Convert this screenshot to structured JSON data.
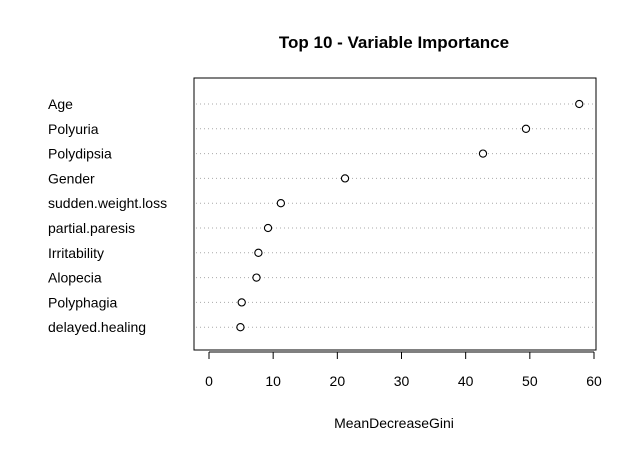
{
  "chart_data": {
    "type": "scatter",
    "title": "Top 10 - Variable Importance",
    "xlabel": "MeanDecreaseGini",
    "ylabel": "",
    "xlim": [
      0,
      60
    ],
    "xticks": [
      "0",
      "10",
      "20",
      "30",
      "40",
      "50",
      "60"
    ],
    "grid": "horizontal dotted",
    "categories": [
      "Age",
      "Polyuria",
      "Polydipsia",
      "Gender",
      "sudden.weight.loss",
      "partial.paresis",
      "Irritability",
      "Alopecia",
      "Polyphagia",
      "delayed.healing"
    ],
    "values": [
      57.7,
      49.4,
      42.7,
      21.2,
      11.2,
      9.2,
      7.7,
      7.4,
      5.1,
      4.9
    ]
  }
}
